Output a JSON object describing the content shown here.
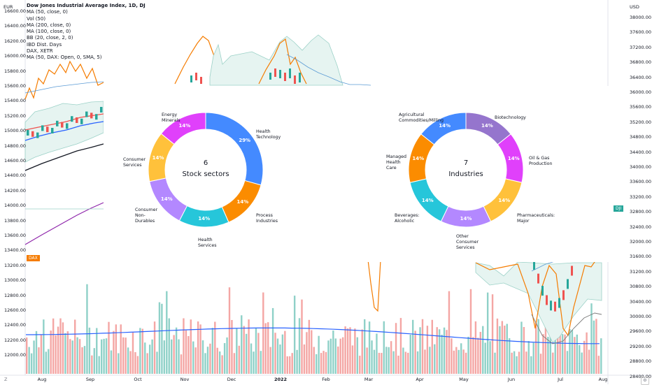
{
  "indicators": {
    "title": "Dow Jones Industrial Average Index, 1D, DJ",
    "items": [
      "MA (50, close, 0)",
      "Vol (50)",
      "MA (200, close, 0)",
      "MA (100, close, 0)",
      "BB (20, close, 2, 0)",
      "IBD Dist. Days",
      "DAX, XETR",
      "MA (50, DAX: Open, 0, SMA, 5)"
    ]
  },
  "currency": {
    "left": "EUR",
    "right": "USD"
  },
  "left_axis": [
    "16600.00",
    "16400.00",
    "16200.00",
    "16000.00",
    "15800.00",
    "15600.00",
    "15400.00",
    "15200.00",
    "15000.00",
    "14800.00",
    "14600.00",
    "14400.00",
    "14200.00",
    "14000.00",
    "13800.00",
    "13600.00",
    "13400.00",
    "13200.00",
    "13000.00",
    "12800.00",
    "12600.00",
    "12400.00",
    "12200.00",
    "12000.00"
  ],
  "right_axis": [
    "38000.00",
    "37600.00",
    "37200.00",
    "36800.00",
    "36400.00",
    "36000.00",
    "35600.00",
    "35200.00",
    "34800.00",
    "34400.00",
    "34000.00",
    "33600.00",
    "33200.00",
    "32800.00",
    "32400.00",
    "32000.00",
    "31600.00",
    "31200.00",
    "30800.00",
    "30400.00",
    "30000.00",
    "29600.00",
    "29200.00",
    "28800.00",
    "28400.00"
  ],
  "x_axis": [
    "Aug",
    "Sep",
    "Oct",
    "Nov",
    "Dec",
    "2022",
    "Feb",
    "Mar",
    "Apr",
    "May",
    "Jun",
    "Jul",
    "Aug"
  ],
  "tags": {
    "dax": "DAX",
    "dji": "DJI"
  },
  "controls": {
    "z": "Z"
  },
  "colors": {
    "teal": "#26a69a",
    "red": "#ef5350",
    "orange": "#f57c00",
    "blue": "#2962ff",
    "purple": "#8e24aa"
  },
  "chart_data": [
    {
      "type": "pie",
      "center_count": "6",
      "center_title": "Stock sectors",
      "slices": [
        {
          "label": "Health\nTechnology",
          "value": 29,
          "pct": "29%",
          "color": "#448aff"
        },
        {
          "label": "Process\nIndustries",
          "value": 14,
          "pct": "14%",
          "color": "#fb8c00"
        },
        {
          "label": "Health\nServices",
          "value": 14,
          "pct": "14%",
          "color": "#26c6da"
        },
        {
          "label": "Consumer\nNon-\nDurables",
          "value": 14,
          "pct": "14%",
          "color": "#b388ff"
        },
        {
          "label": "Consumer\nServices",
          "value": 14,
          "pct": "14%",
          "color": "#ffc13b"
        },
        {
          "label": "Energy\nMinerals",
          "value": 14,
          "pct": "14%",
          "color": "#e040fb"
        }
      ]
    },
    {
      "type": "pie",
      "center_count": "7",
      "center_title": "Industries",
      "slices": [
        {
          "label": "Biotechnology",
          "value": 14,
          "pct": "14%",
          "color": "#9575cd"
        },
        {
          "label": "Oil & Gas\nProduction",
          "value": 14,
          "pct": "14%",
          "color": "#e040fb"
        },
        {
          "label": "Pharmaceuticals:\nMajor",
          "value": 14,
          "pct": "14%",
          "color": "#ffc13b"
        },
        {
          "label": "Other\nConsumer\nServices",
          "value": 14,
          "pct": "14%",
          "color": "#b388ff"
        },
        {
          "label": "Beverages:\nAlcoholic",
          "value": 14,
          "pct": "14%",
          "color": "#26c6da"
        },
        {
          "label": "Managed\nHealth\nCare",
          "value": 14,
          "pct": "14%",
          "color": "#fb8c00"
        },
        {
          "label": "Agricultural\nCommodities/Milling",
          "value": 14,
          "pct": "14%",
          "color": "#448aff"
        }
      ]
    }
  ]
}
